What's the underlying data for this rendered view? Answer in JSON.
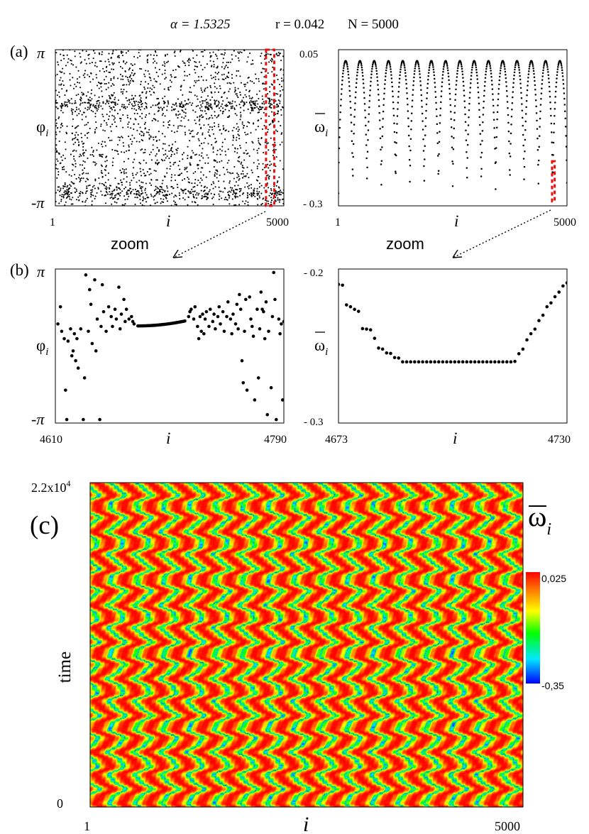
{
  "title": {
    "alpha": "α = 1.5325",
    "r": "r = 0.042",
    "N": "N = 5000"
  },
  "chart_data": [
    {
      "id": "a-left",
      "panel_label": "(a)",
      "type": "scatter",
      "title": "",
      "xlabel": "i",
      "ylabel": "φi",
      "ylabel_base": "φ",
      "ylabel_sub": "i",
      "xlim": [
        1,
        5000
      ],
      "ylim": [
        -3.14159,
        3.14159
      ],
      "x_tick_labels": [
        "1",
        "5000"
      ],
      "y_tick_labels": [
        "π",
        "-π"
      ],
      "pattern": {
        "n_points": 2400,
        "cluster_x_centers": [
          270,
          780,
          1290,
          1800,
          2310,
          2820,
          3330,
          3840,
          4350,
          4860
        ],
        "upper_cluster_y": 0.9,
        "lower_cluster_y": -2.6
      },
      "highlight_box": {
        "x_range": [
          4610,
          4790
        ],
        "y_range": [
          -3.14159,
          3.14159
        ],
        "color": "#e81010"
      },
      "annotation": "zoom"
    },
    {
      "id": "a-right",
      "type": "scatter",
      "xlabel": "i",
      "ylabel": "ω̄i",
      "ylabel_base": "ω",
      "ylabel_sub": "i",
      "xlim": [
        1,
        5000
      ],
      "ylim": [
        -0.3,
        0.05
      ],
      "x_tick_labels": [
        "1",
        "5000"
      ],
      "y_tick_labels": [
        "0.05",
        "- 0.3"
      ],
      "pattern": {
        "n_arches": 16,
        "max": 0.025,
        "min": -0.272
      },
      "highlight_box": {
        "x_range": [
          4673,
          4730
        ],
        "y_range": [
          -0.29,
          -0.2
        ],
        "color": "#e81010"
      },
      "annotation": "zoom"
    },
    {
      "id": "b-left",
      "panel_label": "(b)",
      "type": "scatter",
      "xlabel": "i",
      "ylabel": "φi",
      "ylabel_base": "φ",
      "ylabel_sub": "i",
      "xlim": [
        4610,
        4790
      ],
      "ylim": [
        -3.14159,
        3.14159
      ],
      "x_tick_labels": [
        "4610",
        "4790"
      ],
      "y_tick_labels": [
        "π",
        "-π"
      ],
      "coherent_plateau": {
        "x_range": [
          4675,
          4712
        ],
        "y_range": [
          0.82,
          1.02
        ]
      },
      "incoherent_points": [
        [
          4612,
          0.9
        ],
        [
          4614,
          1.6
        ],
        [
          4615,
          0.6
        ],
        [
          4617,
          0.3
        ],
        [
          4618,
          -1.8
        ],
        [
          4619,
          -3.0
        ],
        [
          4620,
          0.2
        ],
        [
          4622,
          0.7
        ],
        [
          4623,
          -0.4
        ],
        [
          4624,
          -0.2
        ],
        [
          4625,
          0.5
        ],
        [
          4626,
          -0.6
        ],
        [
          4627,
          0.3
        ],
        [
          4628,
          -0.9
        ],
        [
          4630,
          0.7
        ],
        [
          4632,
          -3.0
        ],
        [
          4633,
          -1.3
        ],
        [
          4634,
          2.9
        ],
        [
          4636,
          0.6
        ],
        [
          4637,
          2.3
        ],
        [
          4638,
          1.7
        ],
        [
          4639,
          0.1
        ],
        [
          4641,
          2.7
        ],
        [
          4642,
          -0.2
        ],
        [
          4643,
          1.1
        ],
        [
          4645,
          -3.0
        ],
        [
          4646,
          0.8
        ],
        [
          4647,
          2.5
        ],
        [
          4648,
          1.4
        ],
        [
          4650,
          0.6
        ],
        [
          4652,
          1.6
        ],
        [
          4654,
          1.2
        ],
        [
          4655,
          0.8
        ],
        [
          4656,
          -3.3
        ],
        [
          4657,
          1.5
        ],
        [
          4658,
          1.1
        ],
        [
          4660,
          2.4
        ],
        [
          4661,
          0.7
        ],
        [
          4662,
          1.3
        ],
        [
          4664,
          1.9
        ],
        [
          4665,
          1.0
        ],
        [
          4666,
          1.5
        ],
        [
          4668,
          1.1
        ],
        [
          4670,
          1.2
        ],
        [
          4671,
          1.0
        ],
        [
          4672,
          0.9
        ],
        [
          4715,
          1.2
        ],
        [
          4716,
          1.4
        ],
        [
          4717,
          1.5
        ],
        [
          4719,
          1.1
        ],
        [
          4720,
          1.6
        ],
        [
          4722,
          0.8
        ],
        [
          4723,
          0.3
        ],
        [
          4724,
          1.2
        ],
        [
          4725,
          0.6
        ],
        [
          4726,
          1.3
        ],
        [
          4727,
          0.5
        ],
        [
          4728,
          1.1
        ],
        [
          4729,
          1.4
        ],
        [
          4731,
          0.8
        ],
        [
          4732,
          1.5
        ],
        [
          4734,
          1.0
        ],
        [
          4735,
          1.3
        ],
        [
          4736,
          0.7
        ],
        [
          4738,
          1.2
        ],
        [
          4739,
          1.6
        ],
        [
          4740,
          0.9
        ],
        [
          4742,
          1.4
        ],
        [
          4743,
          0.6
        ],
        [
          4745,
          1.2
        ],
        [
          4746,
          1.8
        ],
        [
          4748,
          1.1
        ],
        [
          4749,
          0.5
        ],
        [
          4750,
          1.3
        ],
        [
          4752,
          0.9
        ],
        [
          4753,
          1.7
        ],
        [
          4754,
          0.7
        ],
        [
          4755,
          2.1
        ],
        [
          4756,
          1.5
        ],
        [
          4757,
          -0.6
        ],
        [
          4758,
          -1.5
        ],
        [
          4759,
          0.6
        ],
        [
          4760,
          1.9
        ],
        [
          4761,
          -1.8
        ],
        [
          4763,
          2.0
        ],
        [
          4764,
          1.1
        ],
        [
          4765,
          0.8
        ],
        [
          4766,
          0.4
        ],
        [
          4767,
          -2.2
        ],
        [
          4769,
          1.5
        ],
        [
          4770,
          -1.3
        ],
        [
          4771,
          0.7
        ],
        [
          4772,
          2.2
        ],
        [
          4773,
          1.5
        ],
        [
          4774,
          1.4
        ],
        [
          4775,
          0.3
        ],
        [
          4776,
          1.8
        ],
        [
          4777,
          -2.8
        ],
        [
          4778,
          0.6
        ],
        [
          4780,
          -1.7
        ],
        [
          4781,
          1.2
        ],
        [
          4782,
          3.0
        ],
        [
          4783,
          1.9
        ],
        [
          4784,
          -3.0
        ],
        [
          4786,
          1.1
        ],
        [
          4787,
          0.5
        ],
        [
          4788,
          0.9
        ],
        [
          4789,
          -2.2
        ],
        [
          4790,
          1.0
        ]
      ]
    },
    {
      "id": "b-right",
      "type": "scatter",
      "xlabel": "i",
      "ylabel": "ω̄i",
      "ylabel_base": "ω",
      "ylabel_sub": "i",
      "xlim": [
        4673,
        4730
      ],
      "ylim": [
        -0.3,
        -0.2
      ],
      "x_tick_labels": [
        "4673",
        "4730"
      ],
      "y_tick_labels": [
        "- 0.2",
        "- 0.3"
      ],
      "x": [
        4673,
        4674,
        4675,
        4676,
        4677,
        4678,
        4679,
        4680,
        4681,
        4682,
        4683,
        4684,
        4685,
        4686,
        4687,
        4688,
        4689,
        4690,
        4691,
        4692,
        4693,
        4694,
        4695,
        4696,
        4697,
        4698,
        4699,
        4700,
        4701,
        4702,
        4703,
        4704,
        4705,
        4706,
        4707,
        4708,
        4709,
        4710,
        4711,
        4712,
        4713,
        4714,
        4715,
        4716,
        4717,
        4718,
        4719,
        4720,
        4721,
        4722,
        4723,
        4724,
        4725,
        4726,
        4727,
        4728,
        4729,
        4730
      ],
      "y": [
        -0.21,
        -0.2105,
        -0.2233,
        -0.2245,
        -0.2262,
        -0.2275,
        -0.2387,
        -0.239,
        -0.2395,
        -0.245,
        -0.2513,
        -0.252,
        -0.2545,
        -0.2548,
        -0.2575,
        -0.2578,
        -0.2603,
        -0.2603,
        -0.2603,
        -0.2603,
        -0.2603,
        -0.2603,
        -0.2603,
        -0.2603,
        -0.2603,
        -0.2603,
        -0.2603,
        -0.2603,
        -0.2603,
        -0.2603,
        -0.2603,
        -0.2603,
        -0.2603,
        -0.2603,
        -0.2603,
        -0.2603,
        -0.2603,
        -0.2603,
        -0.2603,
        -0.2603,
        -0.2603,
        -0.2603,
        -0.2603,
        -0.2603,
        -0.26,
        -0.255,
        -0.252,
        -0.246,
        -0.242,
        -0.239,
        -0.2335,
        -0.23,
        -0.2245,
        -0.222,
        -0.218,
        -0.215,
        -0.211,
        -0.209
      ]
    },
    {
      "id": "c",
      "panel_label": "(c)",
      "type": "heatmap",
      "xlabel": "i",
      "ylabel": "time",
      "xlim": [
        1,
        5000
      ],
      "ylim": [
        0,
        22000
      ],
      "x_tick_labels": [
        "1",
        "5000"
      ],
      "y_tick_labels": [
        "2.2x10",
        "4",
        "0"
      ],
      "pattern": {
        "n_stripes": 16.5
      },
      "colorbar": {
        "label_base": "ω",
        "label_sub": "i",
        "max_label": "0,025",
        "min_label": "-0,35",
        "range": [
          -0.35,
          0.025
        ],
        "colors": [
          "#0000ff",
          "#00e8ff",
          "#00ff00",
          "#ffff00",
          "#ff8000",
          "#ff0000"
        ]
      }
    }
  ],
  "colors": {
    "dots": "#000000",
    "highlight": "#e81010"
  }
}
